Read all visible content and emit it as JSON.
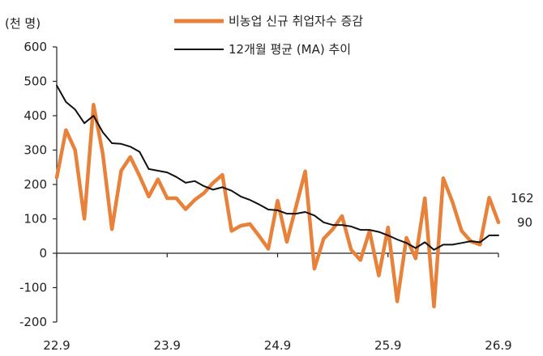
{
  "chart_data": {
    "type": "line",
    "unit_label": "(천 명)",
    "ylim": [
      -200,
      600
    ],
    "y_ticks": [
      -200,
      -100,
      0,
      100,
      200,
      300,
      400,
      500,
      600
    ],
    "x_tick_labels": [
      "22.9",
      "23.9",
      "24.9",
      "25.9",
      "26.9"
    ],
    "x_tick_index": [
      0,
      12,
      24,
      36,
      48
    ],
    "legend_position": "top",
    "series": [
      {
        "name": "비농업 신규 취업자수 증감",
        "color": "#E8813A",
        "values": [
          220,
          358,
          300,
          100,
          432,
          290,
          70,
          240,
          280,
          225,
          165,
          215,
          160,
          160,
          128,
          155,
          175,
          205,
          228,
          65,
          80,
          85,
          50,
          13,
          153,
          33,
          135,
          238,
          -45,
          42,
          70,
          108,
          10,
          -20,
          65,
          -65,
          75,
          -140,
          45,
          -15,
          160,
          -155,
          218,
          150,
          65,
          35,
          25,
          162,
          90
        ]
      },
      {
        "name": "12개월 평균 (MA) 추이",
        "color": "#111111",
        "values": [
          488,
          440,
          418,
          378,
          400,
          352,
          320,
          318,
          310,
          295,
          245,
          240,
          235,
          222,
          205,
          210,
          195,
          185,
          192,
          182,
          165,
          155,
          142,
          127,
          125,
          115,
          115,
          120,
          110,
          90,
          82,
          82,
          78,
          68,
          68,
          62,
          52,
          40,
          30,
          15,
          32,
          10,
          25,
          25,
          30,
          35,
          32,
          52,
          52
        ]
      }
    ],
    "end_labels": [
      "162",
      "90"
    ]
  }
}
